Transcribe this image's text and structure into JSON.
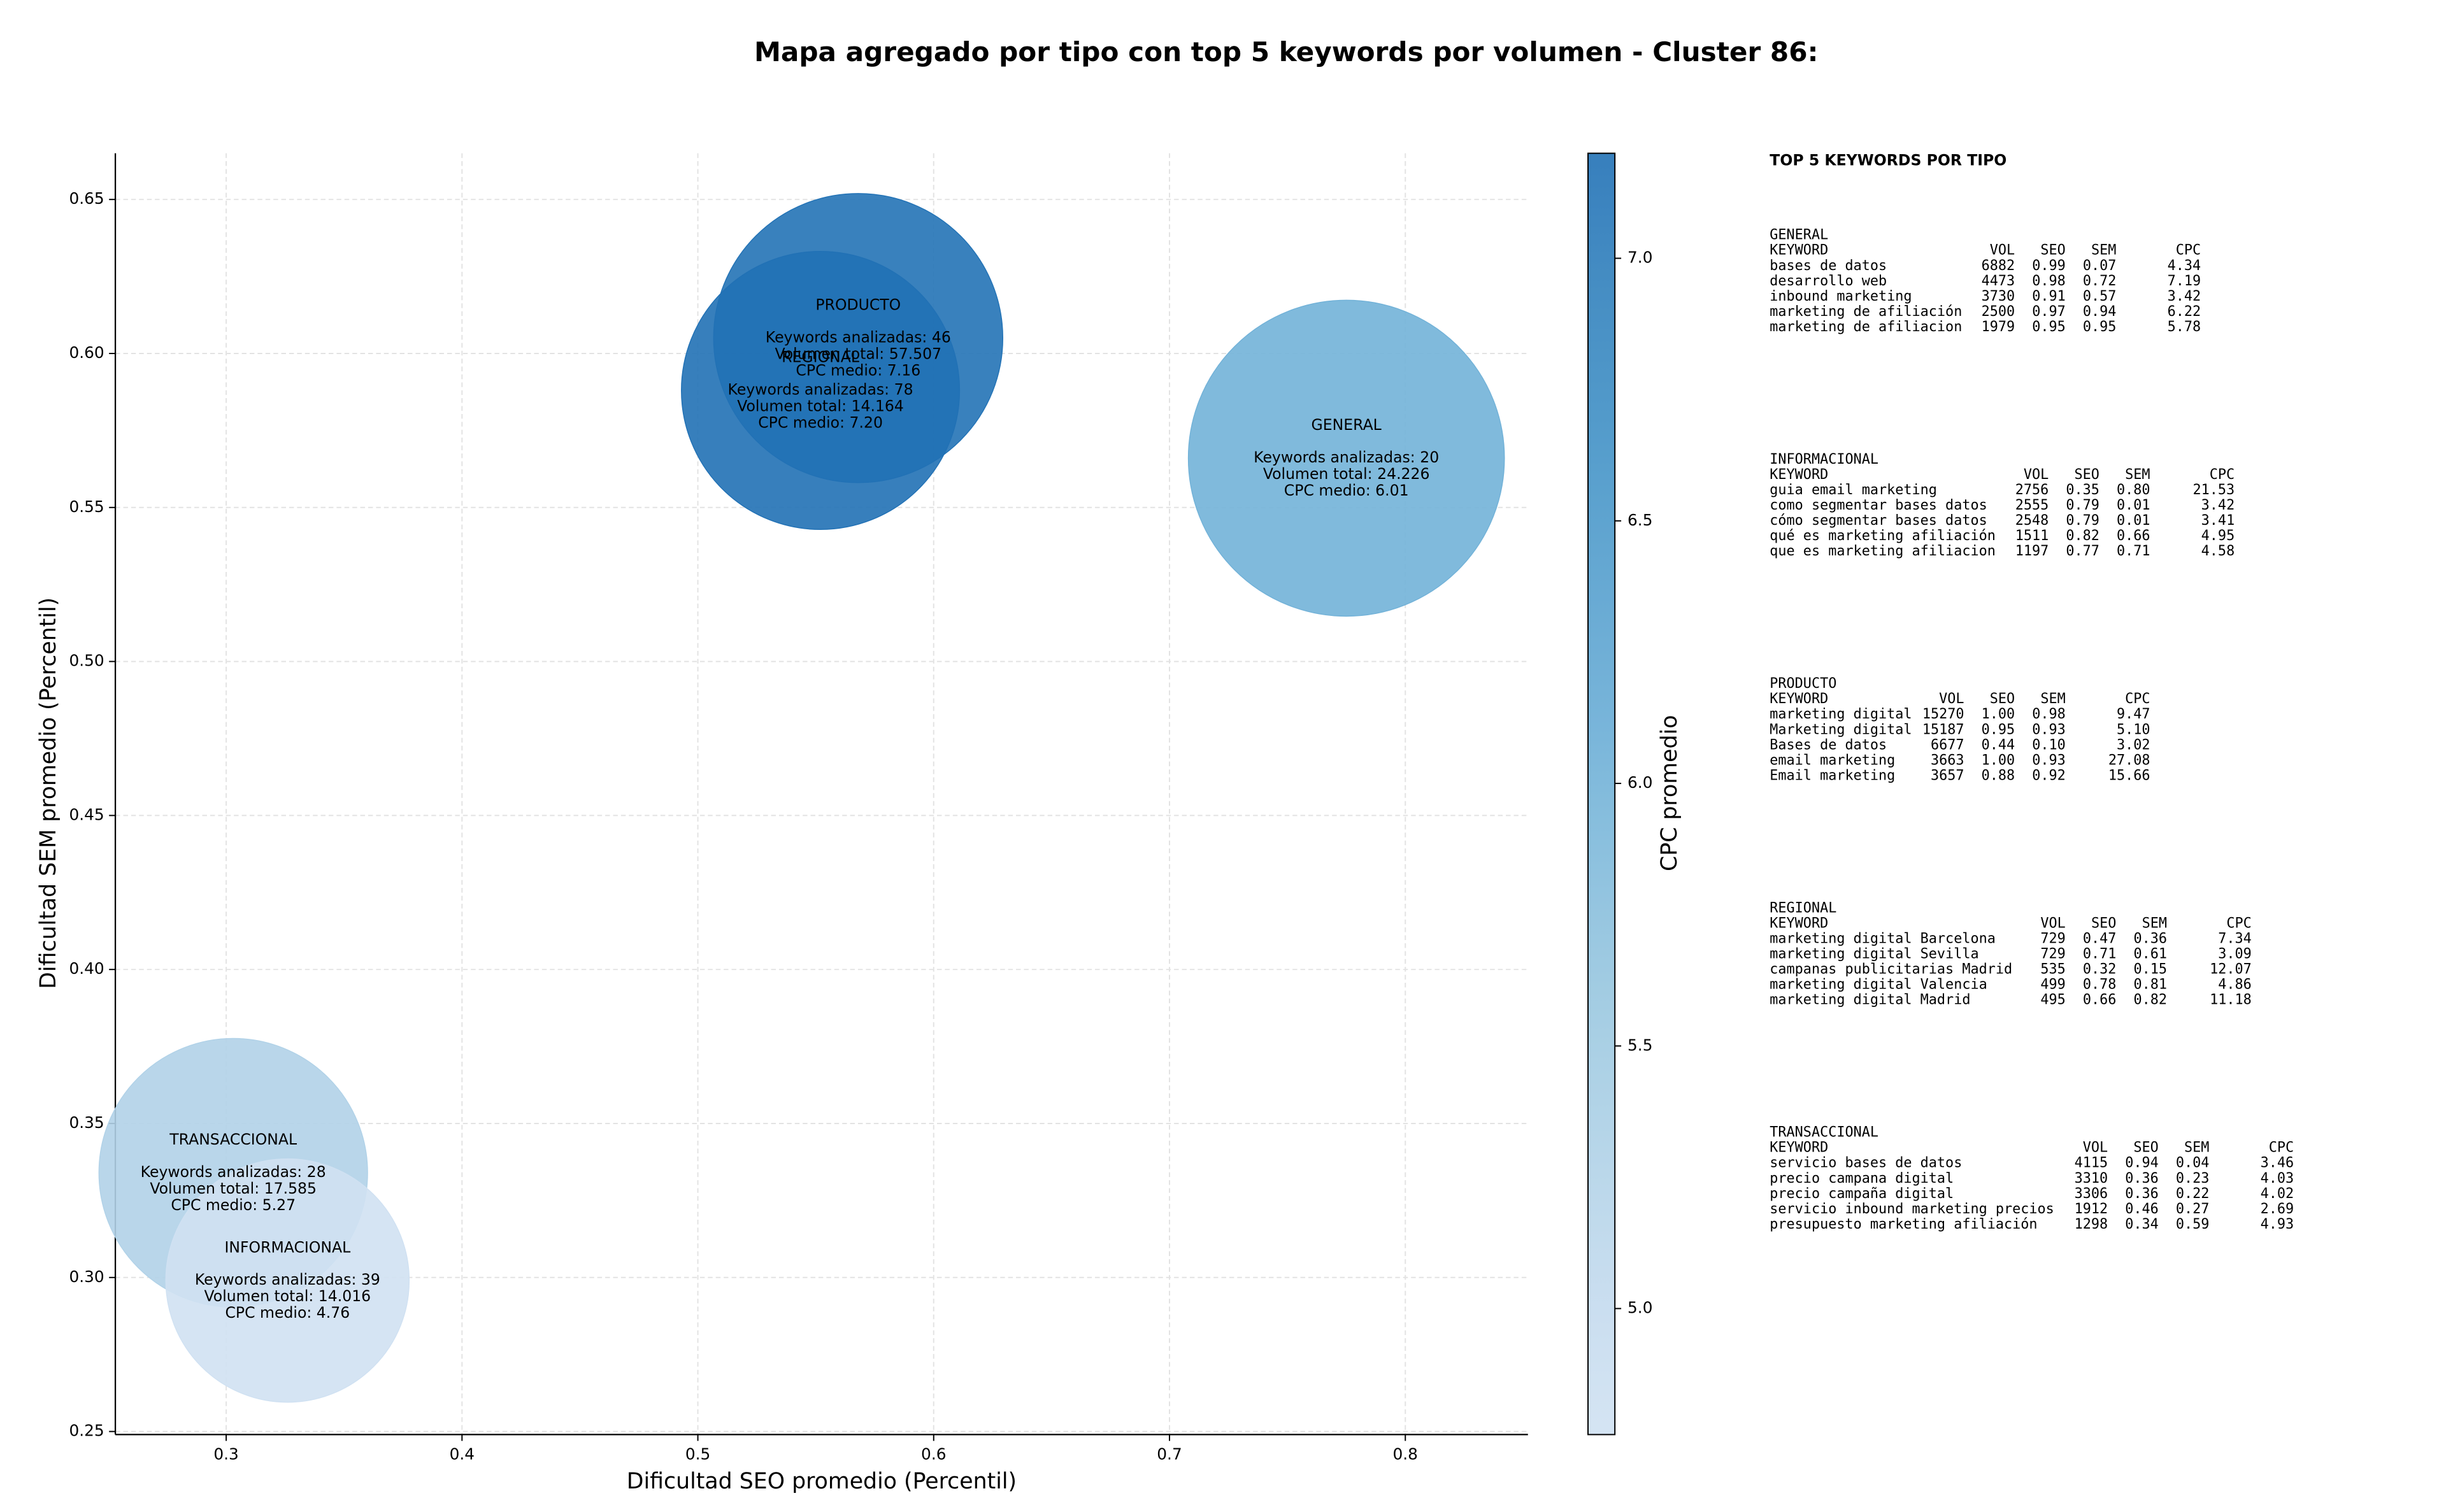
{
  "chart_data": {
    "type": "bubble",
    "title": "Mapa agregado por tipo con top 5 keywords por volumen - Cluster 86:",
    "xlabel": "Dificultad SEO promedio (Percentil)",
    "ylabel": "Dificultad SEM promedio (Percentil)",
    "colorbar_label": "CPC promedio",
    "xlim": [
      0.253,
      0.852
    ],
    "ylim": [
      0.249,
      0.665
    ],
    "xticks": [
      0.3,
      0.4,
      0.5,
      0.6,
      0.7,
      0.8
    ],
    "yticks": [
      0.25,
      {
        "value": 0.3,
        "label": "0.30"
      },
      0.35,
      {
        "value": 0.4,
        "label": "0.40"
      },
      0.45,
      {
        "value": 0.5,
        "label": "0.50"
      },
      0.55,
      {
        "value": 0.6,
        "label": "0.60"
      },
      0.65
    ],
    "clim": [
      4.76,
      7.2
    ],
    "cticks": [
      {
        "value": 5,
        "label": "5.0"
      },
      {
        "value": 5.5,
        "label": "5.5"
      },
      {
        "value": 6,
        "label": "6.0"
      },
      {
        "value": 6.5,
        "label": "6.5"
      },
      {
        "value": 7,
        "label": "7.0"
      }
    ],
    "grid": true,
    "series": [
      {
        "name": "PRODUCTO",
        "x": 0.568,
        "y": 0.605,
        "size": 8372,
        "cpc": 7.16,
        "lines": [
          "Keywords analizadas: 46",
          "Volumen total: 57.507",
          "CPC medio: 7.16"
        ]
      },
      {
        "name": "REGIONAL",
        "x": 0.552,
        "y": 0.588,
        "size": 7744,
        "cpc": 7.2,
        "lines": [
          "Keywords analizadas: 78",
          "Volumen total: 14.164",
          "CPC medio: 7.20"
        ]
      },
      {
        "name": "GENERAL",
        "x": 0.775,
        "y": 0.566,
        "size": 10000,
        "cpc": 6.01,
        "lines": [
          "Keywords analizadas: 20",
          "Volumen total: 24.226",
          "CPC medio: 6.01"
        ]
      },
      {
        "name": "TRANSACCIONAL",
        "x": 0.303,
        "y": 0.334,
        "size": 7225,
        "cpc": 5.27,
        "lines": [
          "Keywords analizadas: 28",
          "Volumen total: 17.585",
          "CPC medio: 5.27"
        ]
      },
      {
        "name": "INFORMACIONAL",
        "x": 0.326,
        "y": 0.299,
        "size": 5929,
        "cpc": 4.76,
        "lines": [
          "Keywords analizadas: 39",
          "Volumen total: 14.016",
          "CPC medio: 4.76"
        ]
      }
    ]
  },
  "keyword_tables": {
    "title": "TOP 5 KEYWORDS POR TIPO",
    "groups": [
      {
        "title": "GENERAL",
        "columns": [
          "KEYWORD",
          "VOL",
          "SEO",
          "SEM",
          "CPC"
        ],
        "rows": [
          [
            "bases de datos",
            "6882",
            "0.99",
            "0.07",
            "4.34"
          ],
          [
            "desarrollo web",
            "4473",
            "0.98",
            "0.72",
            "7.19"
          ],
          [
            "inbound marketing",
            "3730",
            "0.91",
            "0.57",
            "3.42"
          ],
          [
            "marketing de afiliación",
            "2500",
            "0.97",
            "0.94",
            "6.22"
          ],
          [
            "marketing de afiliacion",
            "1979",
            "0.95",
            "0.95",
            "5.78"
          ]
        ]
      },
      {
        "title": "INFORMACIONAL",
        "columns": [
          "KEYWORD",
          "VOL",
          "SEO",
          "SEM",
          "CPC"
        ],
        "rows": [
          [
            "guia email marketing",
            "2756",
            "0.35",
            "0.80",
            "21.53"
          ],
          [
            "como segmentar bases datos",
            "2555",
            "0.79",
            "0.01",
            "3.42"
          ],
          [
            "cómo segmentar bases datos",
            "2548",
            "0.79",
            "0.01",
            "3.41"
          ],
          [
            "qué es marketing afiliación",
            "1511",
            "0.82",
            "0.66",
            "4.95"
          ],
          [
            "que es marketing afiliacion",
            "1197",
            "0.77",
            "0.71",
            "4.58"
          ]
        ]
      },
      {
        "title": "PRODUCTO",
        "columns": [
          "KEYWORD",
          "VOL",
          "SEO",
          "SEM",
          "CPC"
        ],
        "rows": [
          [
            "marketing digital",
            "15270",
            "1.00",
            "0.98",
            "9.47"
          ],
          [
            "Marketing digital",
            "15187",
            "0.95",
            "0.93",
            "5.10"
          ],
          [
            "Bases de datos",
            "6677",
            "0.44",
            "0.10",
            "3.02"
          ],
          [
            "email marketing",
            "3663",
            "1.00",
            "0.93",
            "27.08"
          ],
          [
            "Email marketing",
            "3657",
            "0.88",
            "0.92",
            "15.66"
          ]
        ]
      },
      {
        "title": "REGIONAL",
        "columns": [
          "KEYWORD",
          "VOL",
          "SEO",
          "SEM",
          "CPC"
        ],
        "rows": [
          [
            "marketing digital Barcelona",
            "729",
            "0.47",
            "0.36",
            "7.34"
          ],
          [
            "marketing digital Sevilla",
            "729",
            "0.71",
            "0.61",
            "3.09"
          ],
          [
            "campanas publicitarias Madrid",
            "535",
            "0.32",
            "0.15",
            "12.07"
          ],
          [
            "marketing digital Valencia",
            "499",
            "0.78",
            "0.81",
            "4.86"
          ],
          [
            "marketing digital Madrid",
            "495",
            "0.66",
            "0.82",
            "11.18"
          ]
        ]
      },
      {
        "title": "TRANSACCIONAL",
        "columns": [
          "KEYWORD",
          "VOL",
          "SEO",
          "SEM",
          "CPC"
        ],
        "rows": [
          [
            "servicio bases de datos",
            "4115",
            "0.94",
            "0.04",
            "3.46"
          ],
          [
            "precio campana digital",
            "3310",
            "0.36",
            "0.23",
            "4.03"
          ],
          [
            "precio campaña digital",
            "3306",
            "0.36",
            "0.22",
            "4.02"
          ],
          [
            "servicio inbound marketing precios",
            "1912",
            "0.46",
            "0.27",
            "2.69"
          ],
          [
            "presupuesto marketing afiliación",
            "1298",
            "0.34",
            "0.59",
            "4.93"
          ]
        ]
      }
    ]
  }
}
